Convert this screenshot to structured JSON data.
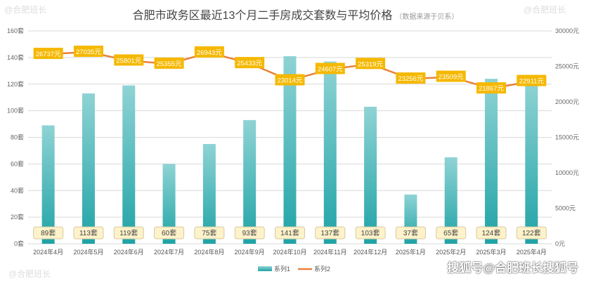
{
  "chart_data": {
    "type": "bar+line",
    "title": "合肥市政务区最近13个月二手房成交套数与平均价格",
    "subtitle": "（数据来源于贝系）",
    "categories": [
      "2024年4月",
      "2024年5月",
      "2024年6月",
      "2024年7月",
      "2024年8月",
      "2024年9月",
      "2024年10月",
      "2024年11月",
      "2024年12月",
      "2025年1月",
      "2025年2月",
      "2025年3月",
      "2025年4月"
    ],
    "series": [
      {
        "name": "系列1",
        "type": "bar",
        "axis": "left",
        "unit": "套",
        "values": [
          89,
          113,
          119,
          60,
          75,
          93,
          141,
          137,
          103,
          37,
          65,
          124,
          122
        ],
        "color": "#2aa9ac"
      },
      {
        "name": "系列2",
        "type": "line",
        "axis": "right",
        "unit": "元",
        "values": [
          26737,
          27035,
          25801,
          25355,
          26943,
          25433,
          23014,
          24607,
          25319,
          23256,
          23509,
          21867,
          22911
        ],
        "color": "#e8823a"
      }
    ],
    "left_axis": {
      "ylim": [
        0,
        160
      ],
      "ticks": [
        0,
        20,
        40,
        60,
        80,
        100,
        120,
        140,
        160
      ],
      "unit": "套"
    },
    "right_axis": {
      "ylim": [
        0,
        30000
      ],
      "ticks": [
        0,
        5000,
        10000,
        15000,
        20000,
        25000,
        30000
      ],
      "unit": "元"
    },
    "grid": true,
    "legend": "bottom",
    "label_color": "#f5b800"
  },
  "watermark": "@合肥班长",
  "brand": "搜狐号@合肥班长搜狐号"
}
